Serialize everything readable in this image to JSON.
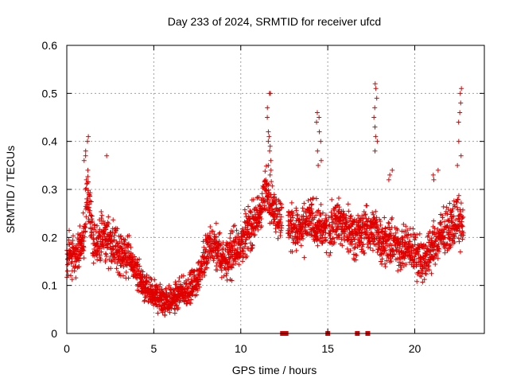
{
  "chart_data": {
    "type": "scatter",
    "title": "Day 233 of 2024, SRMTID for receiver ufcd",
    "xlabel": "GPS time / hours",
    "ylabel": "SRMTID / TECUs",
    "xlim": [
      0,
      24
    ],
    "ylim": [
      0,
      0.6
    ],
    "x_ticks": [
      0,
      5,
      10,
      15,
      20
    ],
    "x_tick_labels": [
      "0",
      "5",
      "10",
      "15",
      "20"
    ],
    "y_ticks": [
      0,
      0.1,
      0.2,
      0.3,
      0.4,
      0.5,
      0.6
    ],
    "y_tick_labels": [
      "0",
      "0.1",
      "0.2",
      "0.3",
      "0.4",
      "0.5",
      "0.6"
    ],
    "grid": true,
    "marker": "plus",
    "color": "#e00000",
    "series": [
      {
        "name": "SRMTID",
        "trend": {
          "x": [
            0.0,
            0.5,
            1.0,
            1.2,
            1.5,
            2.0,
            2.5,
            3.0,
            3.5,
            4.0,
            4.5,
            5.0,
            5.5,
            6.0,
            6.5,
            7.0,
            7.5,
            8.0,
            8.5,
            9.0,
            9.5,
            10.0,
            10.5,
            11.0,
            11.5,
            12.0,
            12.5,
            13.0,
            13.5,
            14.0,
            14.5,
            15.0,
            15.5,
            16.0,
            16.5,
            17.0,
            17.5,
            18.0,
            18.5,
            19.0,
            19.5,
            20.0,
            20.5,
            21.0,
            21.5,
            22.0,
            22.5,
            22.8
          ],
          "y": [
            0.17,
            0.16,
            0.2,
            0.3,
            0.18,
            0.2,
            0.19,
            0.17,
            0.16,
            0.13,
            0.09,
            0.08,
            0.07,
            0.07,
            0.08,
            0.09,
            0.11,
            0.17,
            0.18,
            0.15,
            0.17,
            0.19,
            0.22,
            0.24,
            0.3,
            0.25,
            0.23,
            0.22,
            0.21,
            0.24,
            0.22,
            0.21,
            0.24,
            0.22,
            0.21,
            0.21,
            0.22,
            0.2,
            0.19,
            0.18,
            0.18,
            0.17,
            0.15,
            0.18,
            0.2,
            0.22,
            0.24,
            0.22
          ]
        },
        "spread": 0.055,
        "spikes": [
          {
            "x": 1.1,
            "values": [
              0.41,
              0.4,
              0.38,
              0.36,
              0.34,
              0.32,
              0.3,
              0.37
            ]
          },
          {
            "x": 2.4,
            "values": [
              0.37
            ]
          },
          {
            "x": 11.6,
            "values": [
              0.5,
              0.5,
              0.47,
              0.45,
              0.42,
              0.41,
              0.4,
              0.39,
              0.38,
              0.36,
              0.35,
              0.34,
              0.33
            ]
          },
          {
            "x": 14.5,
            "values": [
              0.46,
              0.45,
              0.44,
              0.42,
              0.4,
              0.38,
              0.36,
              0.35
            ]
          },
          {
            "x": 17.7,
            "values": [
              0.52,
              0.51,
              0.49,
              0.47,
              0.45,
              0.43,
              0.41,
              0.4,
              0.38
            ]
          },
          {
            "x": 22.6,
            "values": [
              0.51,
              0.5,
              0.48,
              0.46,
              0.44,
              0.4,
              0.37,
              0.35
            ]
          },
          {
            "x": 18.6,
            "values": [
              0.34,
              0.33,
              0.32
            ]
          },
          {
            "x": 21.2,
            "values": [
              0.34,
              0.33,
              0.32
            ]
          }
        ]
      },
      {
        "name": "data gaps",
        "points": [
          {
            "x": 12.4,
            "y": 0
          },
          {
            "x": 12.6,
            "y": 0
          },
          {
            "x": 15.0,
            "y": 0
          },
          {
            "x": 16.7,
            "y": 0
          },
          {
            "x": 17.3,
            "y": 0
          }
        ]
      }
    ]
  }
}
